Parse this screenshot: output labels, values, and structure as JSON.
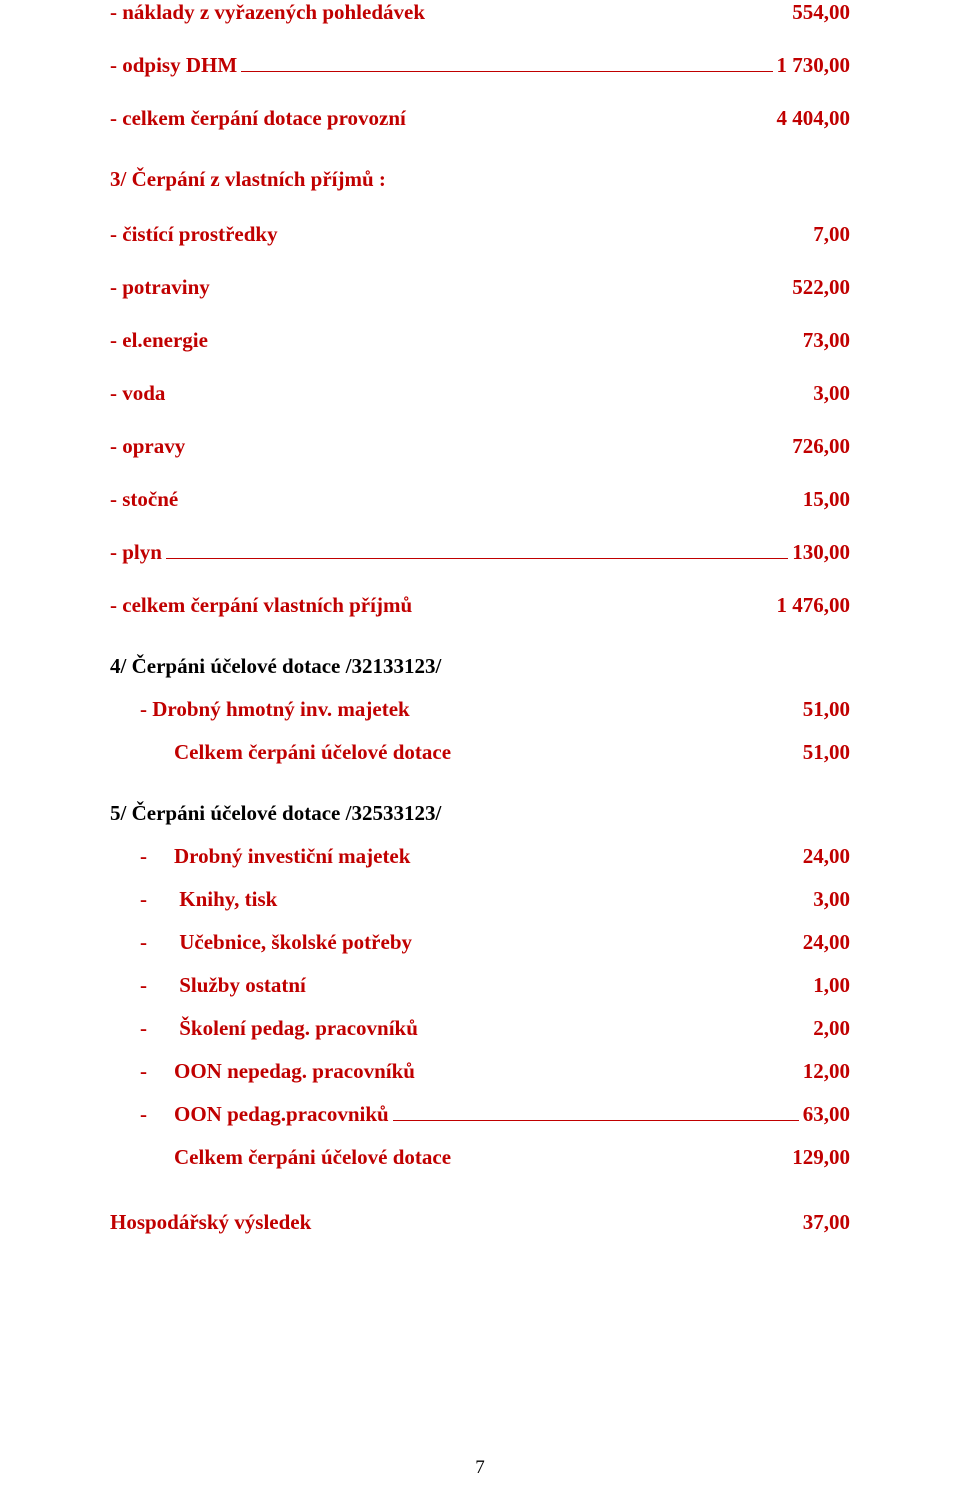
{
  "colors": {
    "red": "#c00000",
    "black": "#000000"
  },
  "fontsize": {
    "body": 21,
    "heading": 21,
    "footer": 19
  },
  "bold": true,
  "section1": {
    "rows": [
      {
        "label": "- náklady z vyřazených pohledávek",
        "value": "554,00",
        "underline": false
      },
      {
        "label": "- odpisy DHM",
        "value": "1 730,00",
        "underline": true
      },
      {
        "label": "- celkem čerpání dotace provozní",
        "value": "4 404,00",
        "underline": false
      }
    ]
  },
  "section3": {
    "heading": "3/ Čerpání z vlastních příjmů :",
    "rows": [
      {
        "label": "- čistící prostředky",
        "value": "7,00",
        "underline": false
      },
      {
        "label": "- potraviny",
        "value": "522,00",
        "underline": false
      },
      {
        "label": "- el.energie",
        "value": "73,00",
        "underline": false
      },
      {
        "label": "- voda",
        "value": "3,00",
        "underline": false
      },
      {
        "label": "- opravy",
        "value": "726,00",
        "underline": false
      },
      {
        "label": "- stočné",
        "value": "15,00",
        "underline": false
      },
      {
        "label": "- plyn",
        "value": "130,00",
        "underline": true
      },
      {
        "label": "- celkem čerpání vlastních příjmů",
        "value": "1 476,00",
        "underline": false
      }
    ]
  },
  "section4": {
    "heading": "4/ Čerpáni účelové dotace /32133123/",
    "rows": [
      {
        "label": "-  Drobný hmotný inv. majetek",
        "value": "51,00",
        "underline": false
      },
      {
        "label": "Celkem čerpáni účelové dotace",
        "value": "51,00",
        "underline": false,
        "noBullet": true
      }
    ]
  },
  "section5": {
    "heading": "5/ Čerpáni účelové dotace /32533123/",
    "rows": [
      {
        "label": "Drobný investiční majetek",
        "value": "24,00"
      },
      {
        "label": " Knihy, tisk",
        "value": "3,00"
      },
      {
        "label": " Učebnice, školské potřeby",
        "value": "24,00"
      },
      {
        "label": " Služby ostatní",
        "value": "1,00"
      },
      {
        "label": " Školení pedag. pracovníků",
        "value": "2,00"
      },
      {
        "label": "OON nepedag. pracovníků",
        "value": "12,00"
      },
      {
        "label": "OON pedag.pracovniků",
        "value": "63,00",
        "underline": true
      }
    ],
    "total": {
      "label": "Celkem čerpáni účelové dotace",
      "value": "129,00"
    }
  },
  "result": {
    "label": "Hospodářský výsledek",
    "value": "37,00"
  },
  "pageNumber": "7"
}
